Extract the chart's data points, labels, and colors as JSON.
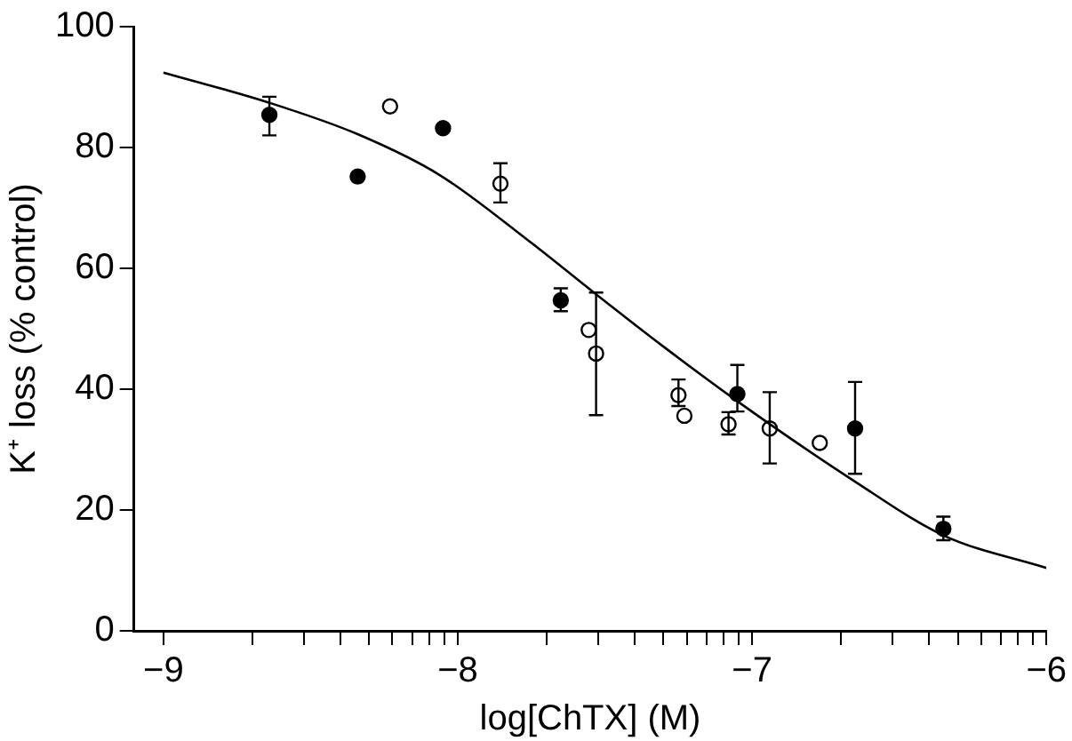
{
  "chart_data": {
    "type": "scatter",
    "xlabel": "log[ChTX] (M)",
    "ylabel": "K⁺ loss (% control)",
    "xlim": [
      -9.1,
      -6
    ],
    "ylim": [
      0,
      100
    ],
    "xticks": [
      {
        "value": -9,
        "label": "−9"
      },
      {
        "value": -8.699,
        "label": null
      },
      {
        "value": -8.523,
        "label": null
      },
      {
        "value": -8.398,
        "label": null
      },
      {
        "value": -8.301,
        "label": null
      },
      {
        "value": -8.222,
        "label": null
      },
      {
        "value": -8.155,
        "label": null
      },
      {
        "value": -8.097,
        "label": null
      },
      {
        "value": -8.046,
        "label": null
      },
      {
        "value": -8,
        "label": "−8"
      },
      {
        "value": -7.699,
        "label": null
      },
      {
        "value": -7.523,
        "label": null
      },
      {
        "value": -7.398,
        "label": null
      },
      {
        "value": -7.301,
        "label": null
      },
      {
        "value": -7.222,
        "label": null
      },
      {
        "value": -7.155,
        "label": null
      },
      {
        "value": -7.097,
        "label": null
      },
      {
        "value": -7.046,
        "label": null
      },
      {
        "value": -7,
        "label": "−7"
      },
      {
        "value": -6.699,
        "label": null
      },
      {
        "value": -6.523,
        "label": null
      },
      {
        "value": -6.398,
        "label": null
      },
      {
        "value": -6.301,
        "label": null
      },
      {
        "value": -6.222,
        "label": null
      },
      {
        "value": -6.155,
        "label": null
      },
      {
        "value": -6.097,
        "label": null
      },
      {
        "value": -6.046,
        "label": null
      },
      {
        "value": -6,
        "label": "−6"
      }
    ],
    "yticks": [
      0,
      20,
      40,
      60,
      80,
      100
    ],
    "grid": false,
    "legend": false,
    "marker": "circle",
    "series": [
      {
        "type": "line",
        "marker": "none",
        "color": "#000000",
        "x": [
          -9,
          -8.64,
          -8.34,
          -8.06,
          -7.755,
          -7.53,
          -7.3,
          -7.05,
          -6.65,
          -6.35,
          -6
        ],
        "values": [
          92.4,
          87.4,
          82.2,
          75.4,
          64.4,
          55.7,
          47,
          38,
          24.7,
          15.8,
          10.4
        ]
      },
      {
        "color": "#000000",
        "x": [
          -8.64,
          -8.34,
          -8.05,
          -7.65,
          -7.05,
          -6.65,
          -6.35
        ],
        "values": [
          85.4,
          75.2,
          83.2,
          54.7,
          39.2,
          33.5,
          16.9
        ],
        "errors": [
          [
            82,
            88.4
          ],
          null,
          null,
          [
            52.9,
            56.7
          ],
          [
            36.3,
            44
          ],
          [
            26,
            41.2
          ],
          [
            15,
            18.9
          ]
        ]
      },
      {
        "color": "#ffffff",
        "x": [
          -8.23,
          -7.855,
          -7.555,
          -7.53,
          -7.25,
          -7.23,
          -7.08,
          -6.94,
          -6.77
        ],
        "values": [
          86.8,
          74,
          49.8,
          45.9,
          39,
          35.6,
          34.2,
          33.5,
          31.1
        ],
        "errors": [
          null,
          [
            70.9,
            77.4
          ],
          null,
          [
            35.7,
            56
          ],
          [
            37.2,
            41.6
          ],
          null,
          [
            32.5,
            36.2
          ],
          [
            27.7,
            39.5
          ],
          null
        ]
      }
    ]
  }
}
